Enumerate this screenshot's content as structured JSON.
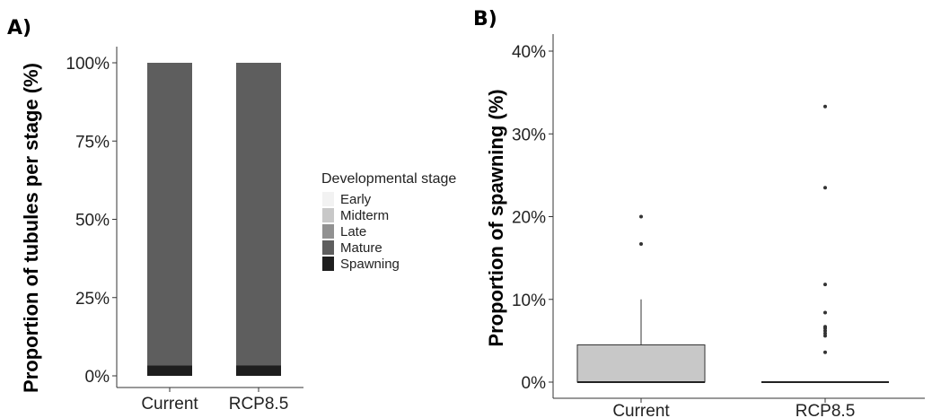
{
  "chart_data": [
    {
      "type": "bar",
      "panel_label": "A)",
      "stacked": true,
      "categories": [
        "Current",
        "RCP8.5"
      ],
      "ylabel": "Proportion of tubules per stage (%)",
      "yticks": [
        "0%",
        "25%",
        "50%",
        "75%",
        "100%"
      ],
      "ylim": [
        0,
        100
      ],
      "legend": {
        "title": "Developmental stage",
        "placement": "right",
        "entries": [
          "Early",
          "Midterm",
          "Late",
          "Mature",
          "Spawning"
        ]
      },
      "series": [
        {
          "name": "Early",
          "color": "#f2f2f2",
          "values": [
            0,
            0
          ]
        },
        {
          "name": "Midterm",
          "color": "#c8c8c8",
          "values": [
            0,
            0
          ]
        },
        {
          "name": "Late",
          "color": "#919191",
          "values": [
            0,
            0
          ]
        },
        {
          "name": "Mature",
          "color": "#5e5e5e",
          "values": [
            96.7,
            96.6
          ]
        },
        {
          "name": "Spawning",
          "color": "#1e1e1e",
          "values": [
            3.3,
            3.4
          ]
        }
      ]
    },
    {
      "type": "box",
      "panel_label": "B)",
      "categories": [
        "Current",
        "RCP8.5"
      ],
      "ylabel": "Proportion of spawning (%)",
      "yticks": [
        "0%",
        "10%",
        "20%",
        "30%",
        "40%"
      ],
      "ylim": [
        0,
        40
      ],
      "box_fill": "#c8c8c8",
      "boxes": [
        {
          "category": "Current",
          "q1": 0,
          "median": 0,
          "q3": 4.5,
          "whisker_low": 0,
          "whisker_high": 10,
          "outliers": [
            16.7,
            20
          ]
        },
        {
          "category": "RCP8.5",
          "q1": 0,
          "median": 0,
          "q3": 0,
          "whisker_low": 0,
          "whisker_high": 0,
          "outliers": [
            3.6,
            5.6,
            5.9,
            6.2,
            6.5,
            6.7,
            8.4,
            11.8,
            23.5,
            33.3
          ]
        }
      ]
    }
  ]
}
